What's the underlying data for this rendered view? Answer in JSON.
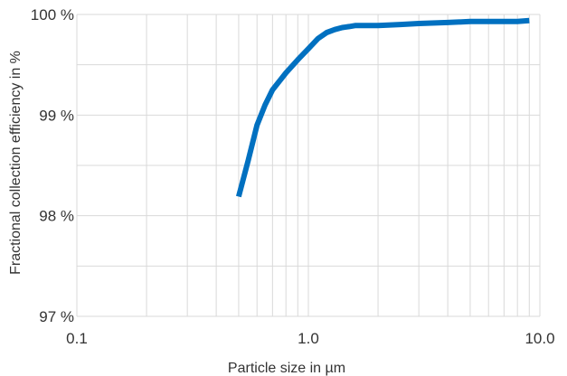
{
  "chart_data": {
    "type": "line",
    "xlabel": "Particle size in µm",
    "ylabel": "Fractional collection efficiency in %",
    "x_scale": "log",
    "xlim": [
      0.1,
      10.0
    ],
    "ylim": [
      97,
      100
    ],
    "x_ticks": [
      {
        "value": 0.1,
        "label": "0.1"
      },
      {
        "value": 1.0,
        "label": "1.0"
      },
      {
        "value": 10.0,
        "label": "10.0"
      }
    ],
    "y_ticks": [
      {
        "value": 97,
        "label": "97 %"
      },
      {
        "value": 98,
        "label": "98 %"
      },
      {
        "value": 99,
        "label": "99 %"
      },
      {
        "value": 100,
        "label": "100 %"
      }
    ],
    "grid": true,
    "series": [
      {
        "color": "#0070c0",
        "x": [
          0.5,
          0.55,
          0.6,
          0.65,
          0.7,
          0.8,
          0.9,
          1.0,
          1.1,
          1.2,
          1.3,
          1.4,
          1.5,
          1.6,
          1.8,
          2.0,
          2.5,
          3.0,
          4.0,
          5.0,
          6.0,
          7.0,
          8.0,
          9.0
        ],
        "values": [
          98.19,
          98.55,
          98.9,
          99.1,
          99.25,
          99.42,
          99.55,
          99.66,
          99.76,
          99.82,
          99.85,
          99.87,
          99.88,
          99.89,
          99.89,
          99.89,
          99.9,
          99.91,
          99.92,
          99.93,
          99.93,
          99.93,
          99.93,
          99.94
        ]
      }
    ]
  }
}
